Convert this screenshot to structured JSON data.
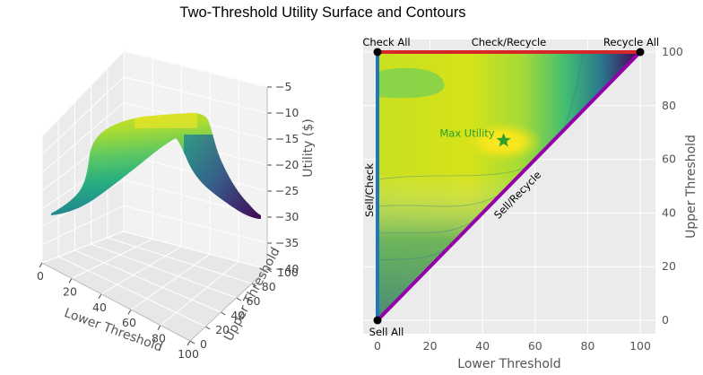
{
  "figure": {
    "title": "Two-Threshold Utility Surface and Contours"
  },
  "chart_data": [
    {
      "type": "surface",
      "xlabel": "Lower Threshold",
      "ylabel": "Upper Threshold",
      "zlabel": "Utility ($)",
      "xlim": [
        0,
        100
      ],
      "ylim": [
        0,
        100
      ],
      "zlim": [
        -40,
        -5
      ],
      "xticks": [
        0,
        20,
        40,
        60,
        80,
        100
      ],
      "yticks": [
        0,
        20,
        40,
        60,
        80,
        100
      ],
      "zticks": [
        -5,
        -10,
        -15,
        -20,
        -25,
        -30,
        -35,
        -40
      ],
      "colormap": "viridis",
      "grid": true
    },
    {
      "type": "heatmap",
      "xlabel": "Lower Threshold",
      "ylabel": "Upper Threshold",
      "xlim": [
        0,
        100
      ],
      "ylim": [
        0,
        100
      ],
      "xticks": [
        0,
        20,
        40,
        60,
        80,
        100
      ],
      "yticks": [
        0,
        20,
        40,
        60,
        80,
        100
      ],
      "colormap": "viridis",
      "grid": true,
      "max_point": {
        "x": 48,
        "y": 67,
        "label": "Max Utility",
        "color": "#2ca02c"
      },
      "corners": [
        {
          "x": 0,
          "y": 100,
          "label": "Check All"
        },
        {
          "x": 100,
          "y": 100,
          "label": "Recycle All"
        },
        {
          "x": 0,
          "y": 0,
          "label": "Sell All"
        }
      ],
      "edges": [
        {
          "label": "Check/Recycle",
          "from": [
            0,
            100
          ],
          "to": [
            100,
            100
          ],
          "color": "#d62728"
        },
        {
          "label": "Sell/Check",
          "from": [
            0,
            0
          ],
          "to": [
            0,
            100
          ],
          "color": "#1f77b4"
        },
        {
          "label": "Sell/Recycle",
          "from": [
            0,
            0
          ],
          "to": [
            100,
            100
          ],
          "color": "#9400aa"
        }
      ]
    }
  ]
}
